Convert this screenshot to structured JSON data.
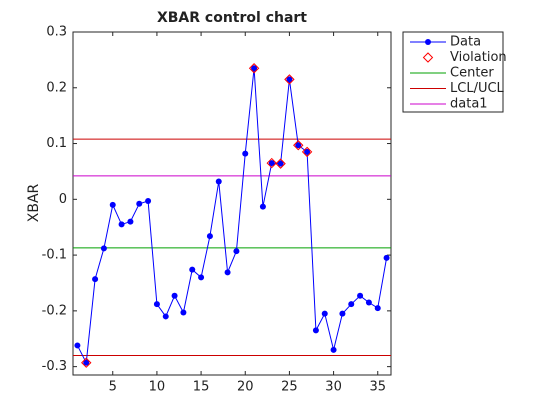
{
  "chart_data": {
    "type": "line",
    "title": "XBAR control chart",
    "ylabel": "XBAR",
    "xlim": [
      0.5,
      36.5
    ],
    "ylim": [
      -0.315,
      0.3
    ],
    "xticks": [
      5,
      10,
      15,
      20,
      25,
      30,
      35
    ],
    "yticks": [
      -0.3,
      -0.2,
      -0.1,
      0,
      0.1,
      0.2,
      0.3
    ],
    "series": [
      {
        "name": "Data",
        "color": "#0000ff",
        "style": "line-marker",
        "x": [
          1,
          2,
          3,
          4,
          5,
          6,
          7,
          8,
          9,
          10,
          11,
          12,
          13,
          14,
          15,
          16,
          17,
          18,
          19,
          20,
          21,
          22,
          23,
          24,
          25,
          26,
          27,
          28,
          29,
          30,
          31,
          32,
          33,
          34,
          35,
          36
        ],
        "values": [
          -0.262,
          -0.293,
          -0.143,
          -0.088,
          -0.01,
          -0.045,
          -0.04,
          -0.008,
          -0.003,
          -0.188,
          -0.21,
          -0.173,
          -0.203,
          -0.126,
          -0.14,
          -0.066,
          0.032,
          -0.131,
          -0.093,
          0.082,
          0.235,
          -0.013,
          0.065,
          0.064,
          0.215,
          0.097,
          0.085,
          -0.235,
          -0.205,
          -0.27,
          -0.205,
          -0.188,
          -0.173,
          -0.185,
          -0.195,
          -0.105
        ]
      },
      {
        "name": "Violation",
        "color": "#ff0000",
        "style": "marker",
        "x": [
          2,
          21,
          23,
          24,
          25,
          26,
          27
        ],
        "values": [
          -0.293,
          0.235,
          0.065,
          0.064,
          0.215,
          0.097,
          0.085
        ]
      },
      {
        "name": "Center",
        "color": "#00a000",
        "style": "hline",
        "values": [
          -0.087
        ]
      },
      {
        "name": "LCL/UCL",
        "color": "#cc0000",
        "style": "hline",
        "values": [
          -0.28,
          0.108
        ]
      },
      {
        "name": "data1",
        "color": "#cc00cc",
        "style": "hline",
        "values": [
          0.042
        ]
      }
    ]
  }
}
